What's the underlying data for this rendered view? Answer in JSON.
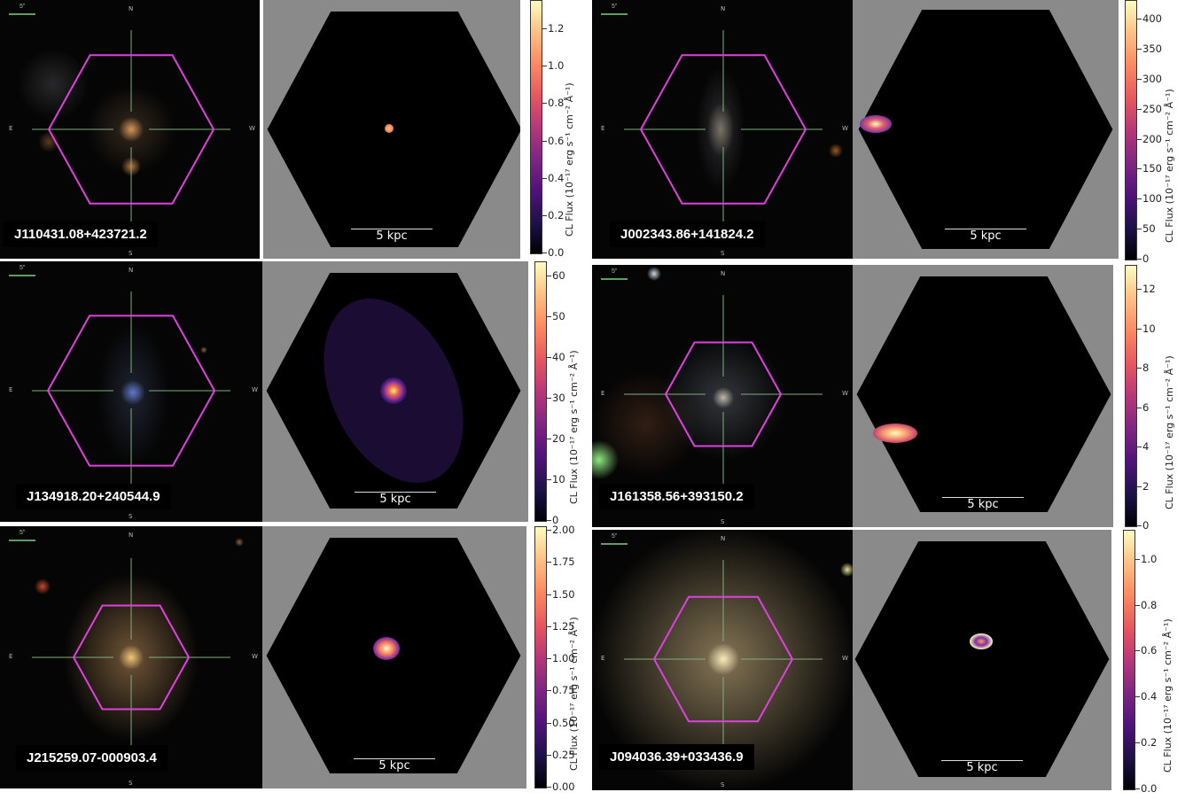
{
  "panels": [
    {
      "object": "J110431.08+423721.2",
      "compass": {
        "n": "N",
        "s": "S",
        "e": "E",
        "w": "W"
      },
      "arcsec": "5\"",
      "scale": "5 kpc",
      "colorbar": {
        "title": "CL Flux (10⁻¹⁷ erg s⁻¹ cm⁻² Å⁻¹)",
        "ticks": [
          "0.0",
          "0.2",
          "0.4",
          "0.6",
          "0.8",
          "1.0",
          "1.2"
        ]
      }
    },
    {
      "object": "J002343.86+141824.2",
      "compass": {
        "n": "N",
        "s": "S",
        "e": "E",
        "w": "W"
      },
      "arcsec": "5\"",
      "scale": "5 kpc",
      "colorbar": {
        "title": "CL Flux (10⁻¹⁷ erg s⁻¹ cm⁻² Å⁻¹)",
        "ticks": [
          "0",
          "50",
          "100",
          "150",
          "200",
          "250",
          "300",
          "350",
          "400"
        ]
      }
    },
    {
      "object": "J134918.20+240544.9",
      "compass": {
        "n": "N",
        "s": "S",
        "e": "E",
        "w": "W"
      },
      "arcsec": "5\"",
      "scale": "5 kpc",
      "colorbar": {
        "title": "CL Flux (10⁻¹⁷ erg s⁻¹ cm⁻² Å⁻¹)",
        "ticks": [
          "0",
          "10",
          "20",
          "30",
          "40",
          "50",
          "60"
        ]
      }
    },
    {
      "object": "J161358.56+393150.2",
      "compass": {
        "n": "N",
        "s": "S",
        "e": "E",
        "w": "W"
      },
      "arcsec": "5\"",
      "scale": "5 kpc",
      "colorbar": {
        "title": "CL Flux (10⁻¹⁷ erg s⁻¹ cm⁻² Å⁻¹)",
        "ticks": [
          "0",
          "2",
          "4",
          "6",
          "8",
          "10",
          "12"
        ]
      }
    },
    {
      "object": "J215259.07-000903.4",
      "compass": {
        "n": "N",
        "s": "S",
        "e": "E",
        "w": "W"
      },
      "arcsec": "5\"",
      "scale": "5 kpc",
      "colorbar": {
        "title": "CL Flux (10⁻¹⁷ erg s⁻¹ cm⁻² Å⁻¹)",
        "ticks": [
          "0.00",
          "0.25",
          "0.50",
          "0.75",
          "1.00",
          "1.25",
          "1.50",
          "1.75",
          "2.00"
        ]
      }
    },
    {
      "object": "J094036.39+033436.9",
      "compass": {
        "n": "N",
        "s": "S",
        "e": "E",
        "w": "W"
      },
      "arcsec": "5\"",
      "scale": "5 kpc",
      "colorbar": {
        "title": "CL Flux (10⁻¹⁷ erg s⁻¹ cm⁻² Å⁻¹)",
        "ticks": [
          "0.0",
          "0.2",
          "0.4",
          "0.6",
          "0.8",
          "1.0"
        ]
      }
    }
  ],
  "colors": {
    "hexagon": "#e040e0",
    "crosshair": "#7fae7f",
    "map_bg": "#8a8a8a",
    "colormap": "magma"
  }
}
